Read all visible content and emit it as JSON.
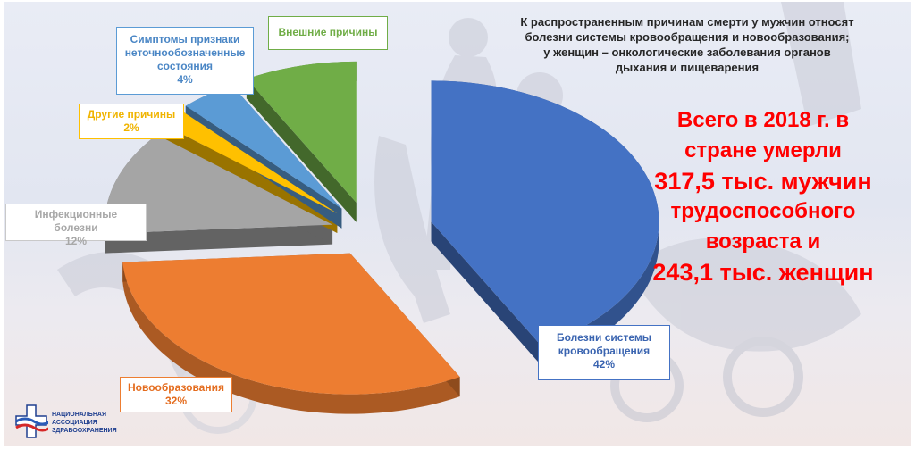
{
  "headline": [
    "К распространенным причинам смерти у мужчин относят",
    "болезни системы кровообращения и новообразования;",
    "у женщин – онкологические заболевания органов",
    "дыхания и пищеварения"
  ],
  "total": [
    "Всего в 2018 г. в",
    "стране умерли",
    "317,5 тыс. мужчин",
    "трудоспособного",
    "возраста и",
    "243,1 тыс. женщин"
  ],
  "logo": [
    "НАЦИОНАЛЬНАЯ",
    "АССОЦИАЦИЯ",
    "ЗДРАВООХРАНЕНИЯ"
  ],
  "chart_data": {
    "type": "pie",
    "exploded": true,
    "style_3d": true,
    "slices": [
      {
        "label": "Болезни системы кровообращения",
        "value": 42,
        "pct_label": "42%",
        "color": "#4472c4"
      },
      {
        "label": "Новообразования",
        "value": 32,
        "pct_label": "32%",
        "color": "#ed7d31"
      },
      {
        "label": "Инфекционные болезни",
        "value": 12,
        "pct_label": "12%",
        "color": "#a5a5a5"
      },
      {
        "label": "Другие причины",
        "value": 2,
        "pct_label": "2%",
        "color": "#ffc000"
      },
      {
        "label": "Симптомы признаки неточнообозначенные состояния",
        "value": 4,
        "pct_label": "4%",
        "color": "#5b9bd5"
      },
      {
        "label": "Внешние причины",
        "value": 8,
        "pct_label": "",
        "color": "#70ad47"
      }
    ]
  }
}
